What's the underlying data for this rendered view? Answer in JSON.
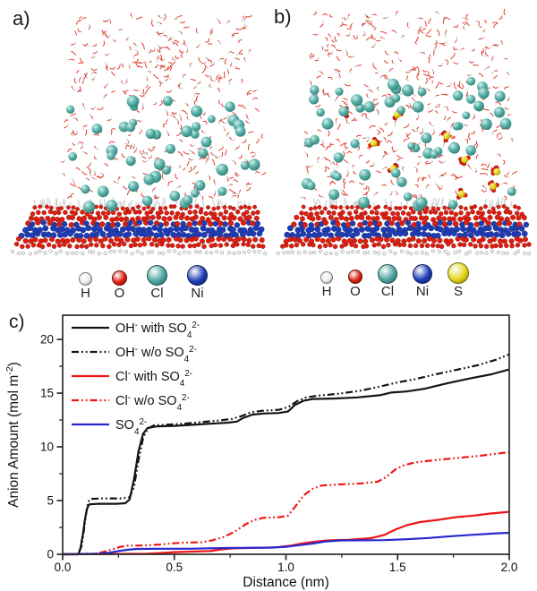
{
  "figure": {
    "panels": {
      "a": {
        "label": "a)"
      },
      "b": {
        "label": "b)"
      },
      "c": {
        "label": "c)"
      }
    },
    "atom_colors": {
      "H": "#ebebeb",
      "O": "#dc1e10",
      "Cl": "#4aa59e",
      "Ni": "#1f3cb4",
      "S": "#e3d61d"
    },
    "atom_legend_a": [
      "H",
      "O",
      "Cl",
      "Ni"
    ],
    "atom_legend_b": [
      "H",
      "O",
      "Cl",
      "Ni",
      "S"
    ]
  },
  "chart_data": {
    "type": "line",
    "title": "",
    "xlabel": "Distance (nm)",
    "ylabel": "Anion Amount (mol m^-2^)",
    "xlim": [
      0,
      2.0
    ],
    "ylim": [
      0,
      22.25
    ],
    "x_ticks": [
      0.0,
      0.5,
      1.0,
      1.5,
      2.0
    ],
    "x_tick_labels": [
      "0.0",
      "0.5",
      "1.0",
      "1.5",
      "2.0"
    ],
    "y_ticks": [
      0,
      5,
      10,
      15,
      20
    ],
    "y_tick_labels": [
      "0",
      "5",
      "10",
      "15",
      "20"
    ],
    "x_minor_step": 0.25,
    "y_minor_step": 2.5,
    "grid": false,
    "legend_position": "top-left",
    "axis_color": "#2b2b2b",
    "series": [
      {
        "name": "OH^-^ with SO_4_^2-^",
        "color": "#141414",
        "style": "solid",
        "points": [
          [
            0,
            0
          ],
          [
            0.07,
            0
          ],
          [
            0.08,
            0.6
          ],
          [
            0.09,
            1.8
          ],
          [
            0.1,
            3.3
          ],
          [
            0.11,
            4.3
          ],
          [
            0.12,
            4.65
          ],
          [
            0.16,
            4.7
          ],
          [
            0.24,
            4.7
          ],
          [
            0.28,
            4.75
          ],
          [
            0.3,
            5.1
          ],
          [
            0.32,
            7.0
          ],
          [
            0.34,
            9.6
          ],
          [
            0.36,
            11.2
          ],
          [
            0.38,
            11.75
          ],
          [
            0.42,
            11.9
          ],
          [
            0.5,
            11.95
          ],
          [
            0.58,
            12.05
          ],
          [
            0.66,
            12.15
          ],
          [
            0.74,
            12.25
          ],
          [
            0.78,
            12.35
          ],
          [
            0.81,
            12.7
          ],
          [
            0.85,
            13.0
          ],
          [
            0.9,
            13.1
          ],
          [
            0.97,
            13.15
          ],
          [
            1.01,
            13.3
          ],
          [
            1.04,
            13.9
          ],
          [
            1.08,
            14.3
          ],
          [
            1.12,
            14.45
          ],
          [
            1.22,
            14.5
          ],
          [
            1.32,
            14.6
          ],
          [
            1.42,
            14.8
          ],
          [
            1.47,
            15.05
          ],
          [
            1.54,
            15.15
          ],
          [
            1.62,
            15.4
          ],
          [
            1.72,
            15.9
          ],
          [
            1.82,
            16.35
          ],
          [
            1.92,
            16.75
          ],
          [
            2.0,
            17.2
          ]
        ]
      },
      {
        "name": "OH^-^ w/o SO_4_^2-^",
        "color": "#141414",
        "style": "dash-dot-dot",
        "points": [
          [
            0,
            0
          ],
          [
            0.07,
            0
          ],
          [
            0.085,
            0.8
          ],
          [
            0.095,
            2.2
          ],
          [
            0.105,
            3.8
          ],
          [
            0.115,
            4.9
          ],
          [
            0.125,
            5.15
          ],
          [
            0.18,
            5.2
          ],
          [
            0.26,
            5.2
          ],
          [
            0.3,
            5.3
          ],
          [
            0.32,
            6.3
          ],
          [
            0.34,
            8.8
          ],
          [
            0.36,
            10.8
          ],
          [
            0.38,
            11.7
          ],
          [
            0.41,
            12.0
          ],
          [
            0.46,
            12.05
          ],
          [
            0.54,
            12.15
          ],
          [
            0.62,
            12.3
          ],
          [
            0.7,
            12.45
          ],
          [
            0.76,
            12.6
          ],
          [
            0.8,
            12.85
          ],
          [
            0.84,
            13.2
          ],
          [
            0.89,
            13.35
          ],
          [
            0.97,
            13.45
          ],
          [
            1.01,
            13.7
          ],
          [
            1.05,
            14.25
          ],
          [
            1.09,
            14.6
          ],
          [
            1.14,
            14.75
          ],
          [
            1.24,
            14.95
          ],
          [
            1.34,
            15.25
          ],
          [
            1.44,
            15.7
          ],
          [
            1.5,
            16.0
          ],
          [
            1.58,
            16.3
          ],
          [
            1.66,
            16.7
          ],
          [
            1.76,
            17.15
          ],
          [
            1.86,
            17.6
          ],
          [
            1.94,
            18.1
          ],
          [
            2.0,
            18.6
          ]
        ]
      },
      {
        "name": "Cl^-^ with SO_4_^2-^",
        "color": "#f01515",
        "style": "solid",
        "points": [
          [
            0,
            0
          ],
          [
            0.38,
            0.05
          ],
          [
            0.44,
            0.12
          ],
          [
            0.5,
            0.2
          ],
          [
            0.58,
            0.25
          ],
          [
            0.66,
            0.3
          ],
          [
            0.71,
            0.45
          ],
          [
            0.76,
            0.55
          ],
          [
            0.86,
            0.6
          ],
          [
            0.96,
            0.65
          ],
          [
            1.02,
            0.8
          ],
          [
            1.07,
            1.0
          ],
          [
            1.12,
            1.15
          ],
          [
            1.18,
            1.28
          ],
          [
            1.28,
            1.35
          ],
          [
            1.38,
            1.5
          ],
          [
            1.44,
            1.8
          ],
          [
            1.49,
            2.3
          ],
          [
            1.54,
            2.7
          ],
          [
            1.6,
            3.0
          ],
          [
            1.68,
            3.2
          ],
          [
            1.76,
            3.45
          ],
          [
            1.84,
            3.6
          ],
          [
            1.92,
            3.8
          ],
          [
            2.0,
            3.95
          ]
        ]
      },
      {
        "name": "Cl^-^ w/o SO_4_^2-^",
        "color": "#f01515",
        "style": "dash-dot-dot",
        "points": [
          [
            0,
            0
          ],
          [
            0.14,
            0.05
          ],
          [
            0.18,
            0.2
          ],
          [
            0.22,
            0.45
          ],
          [
            0.26,
            0.7
          ],
          [
            0.29,
            0.8
          ],
          [
            0.36,
            0.82
          ],
          [
            0.43,
            0.9
          ],
          [
            0.48,
            1.0
          ],
          [
            0.54,
            1.08
          ],
          [
            0.62,
            1.12
          ],
          [
            0.67,
            1.3
          ],
          [
            0.72,
            1.6
          ],
          [
            0.77,
            2.1
          ],
          [
            0.82,
            2.8
          ],
          [
            0.86,
            3.2
          ],
          [
            0.9,
            3.4
          ],
          [
            0.97,
            3.45
          ],
          [
            1.01,
            3.6
          ],
          [
            1.04,
            4.4
          ],
          [
            1.08,
            5.5
          ],
          [
            1.12,
            6.1
          ],
          [
            1.16,
            6.4
          ],
          [
            1.24,
            6.5
          ],
          [
            1.34,
            6.6
          ],
          [
            1.41,
            6.75
          ],
          [
            1.45,
            7.2
          ],
          [
            1.49,
            7.9
          ],
          [
            1.53,
            8.3
          ],
          [
            1.58,
            8.55
          ],
          [
            1.66,
            8.75
          ],
          [
            1.76,
            8.95
          ],
          [
            1.86,
            9.15
          ],
          [
            1.94,
            9.35
          ],
          [
            2.0,
            9.5
          ]
        ]
      },
      {
        "name": "SO_4_^2-^",
        "color": "#2727cf",
        "style": "solid",
        "points": [
          [
            0,
            0
          ],
          [
            0.17,
            0.05
          ],
          [
            0.21,
            0.15
          ],
          [
            0.25,
            0.3
          ],
          [
            0.29,
            0.42
          ],
          [
            0.33,
            0.5
          ],
          [
            0.45,
            0.52
          ],
          [
            0.57,
            0.52
          ],
          [
            0.68,
            0.57
          ],
          [
            0.8,
            0.6
          ],
          [
            0.93,
            0.62
          ],
          [
            1.0,
            0.7
          ],
          [
            1.06,
            0.85
          ],
          [
            1.12,
            1.0
          ],
          [
            1.18,
            1.2
          ],
          [
            1.24,
            1.28
          ],
          [
            1.34,
            1.3
          ],
          [
            1.44,
            1.32
          ],
          [
            1.54,
            1.4
          ],
          [
            1.64,
            1.52
          ],
          [
            1.74,
            1.68
          ],
          [
            1.84,
            1.82
          ],
          [
            1.94,
            1.95
          ],
          [
            2.0,
            2.0
          ]
        ]
      }
    ]
  }
}
